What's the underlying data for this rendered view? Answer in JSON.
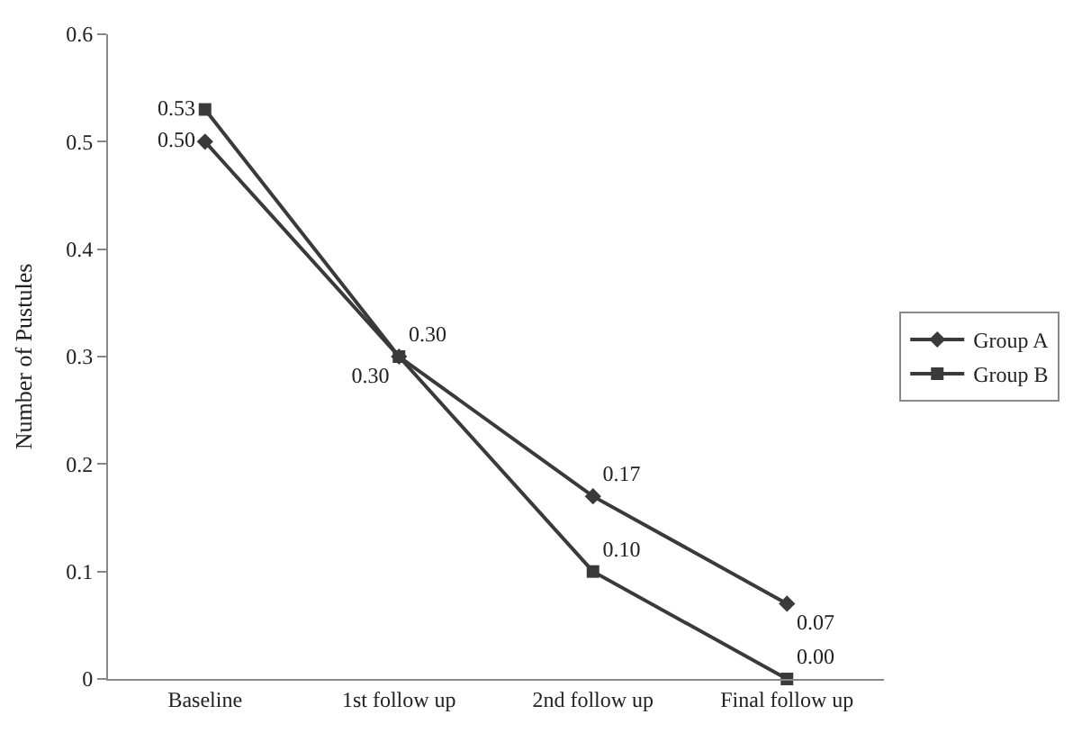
{
  "chart_data": {
    "type": "line",
    "ylabel": "Number of Pustules",
    "categories": [
      "Baseline",
      "1st follow up",
      "2nd follow up",
      "Final follow up"
    ],
    "series": [
      {
        "name": "Group A",
        "color": "#3a3a3a",
        "marker": "diamond",
        "values": [
          0.5,
          0.3,
          0.17,
          0.07
        ],
        "value_labels": [
          "0.50",
          "0.30",
          "0.17",
          "0.07"
        ]
      },
      {
        "name": "Group B",
        "color": "#3a3a3a",
        "marker": "square",
        "values": [
          0.53,
          0.3,
          0.1,
          0.0
        ],
        "value_labels": [
          "0.53",
          "0.30",
          "0.10",
          "0.00"
        ]
      }
    ],
    "ylim": [
      0,
      0.6
    ],
    "yticks": [
      0,
      0.1,
      0.2,
      0.3,
      0.4,
      0.5,
      0.6
    ],
    "legend": "right",
    "line_style": "solid"
  }
}
